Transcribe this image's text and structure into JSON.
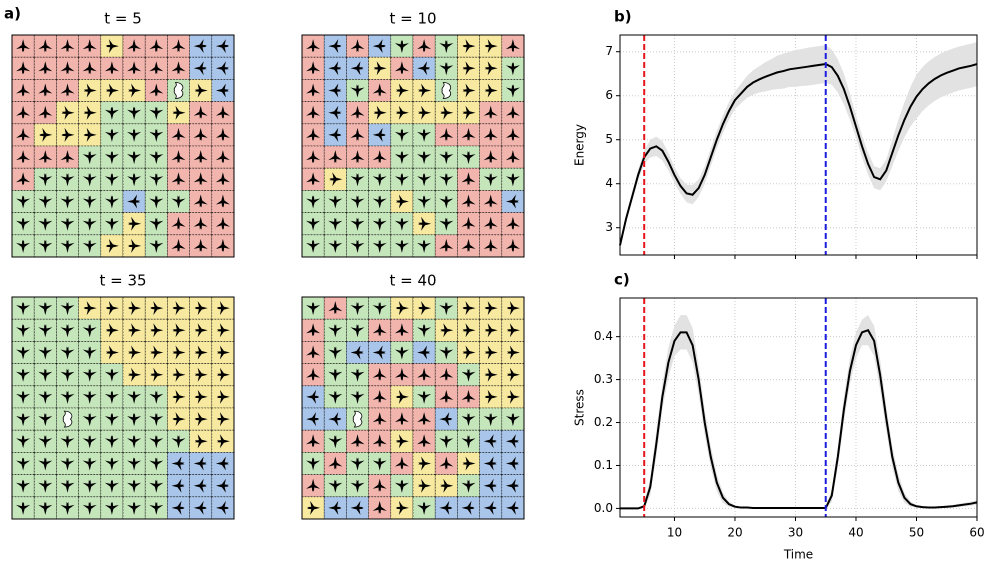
{
  "panel_label": "a)",
  "cell_colors": {
    "U": "#f2b5ad",
    "L": "#a9c6ea",
    "R": "#f7e9a0",
    "D": "#c5e5bb",
    "B": "#c5e5bb"
  },
  "grids": [
    {
      "title": "t = 5",
      "rows": [
        "UUUURUUULL",
        "UUUUUUUULL",
        "UUURRRUBRL",
        "UURRDDDRUU",
        "URRRDDDUUU",
        "UUUDDDDUUU",
        "UDDDDDDUUU",
        "DDDDDLDDUU",
        "DDDDDRDUUU",
        "DDDDRRDUUU"
      ]
    },
    {
      "title": "t = 10",
      "rows": [
        "ULULDUDRRU",
        "ULLRULDRRD",
        "ULDURRBRRD",
        "ULURRRRRUU",
        "ULULDDUUUU",
        "UUUUDDDDUU",
        "URDDDDDUDD",
        "DDDDRDDUUL",
        "DDDDDRDUUU",
        "DDDDDDUUUU"
      ]
    },
    {
      "title": "t = 35",
      "rows": [
        "DDDRRRRRRR",
        "DDDDRRRRRR",
        "DDDDRRRRRR",
        "DDDDDRRRRR",
        "DDDDDDDRRR",
        "DDBDDDDRRR",
        "DDDDDDDDRR",
        "DDDDDDDLLL",
        "DDDDDDDLLL",
        "DDDDDDDLLL"
      ]
    },
    {
      "title": "t = 40",
      "rows": [
        "DUDDRRDRRR",
        "UDDUUDRRRR",
        "UDLLDLDRRR",
        "UDDUUUUDRR",
        "LDDURDUURR",
        "LLBUUULDDD",
        "UDUURUDDLL",
        "DUDDURURLL",
        "UDDUDRRDLL",
        "RLLURDLLLL"
      ]
    }
  ],
  "chart_data": [
    {
      "type": "line",
      "label": "b)",
      "ylabel": "Energy",
      "xlim": [
        1,
        60
      ],
      "ylim": [
        2.38,
        7.38
      ],
      "xticks": [
        10,
        20,
        30,
        40,
        50,
        60
      ],
      "yticks": [
        3,
        4,
        5,
        6,
        7
      ],
      "show_xtick_labels": false,
      "grid": true,
      "band_color": "#e2e2e2",
      "x": [
        1,
        2,
        3,
        4,
        5,
        6,
        7,
        8,
        9,
        10,
        11,
        12,
        13,
        14,
        15,
        16,
        17,
        18,
        19,
        20,
        21,
        22,
        23,
        24,
        25,
        26,
        27,
        28,
        29,
        30,
        31,
        32,
        33,
        34,
        35,
        36,
        37,
        38,
        39,
        40,
        41,
        42,
        43,
        44,
        45,
        46,
        47,
        48,
        49,
        50,
        51,
        52,
        53,
        54,
        55,
        56,
        57,
        58,
        59,
        60
      ],
      "series": [
        {
          "color": "#000000",
          "values": [
            2.6,
            3.2,
            3.7,
            4.2,
            4.6,
            4.8,
            4.85,
            4.75,
            4.5,
            4.2,
            3.95,
            3.78,
            3.75,
            3.9,
            4.2,
            4.6,
            5.0,
            5.35,
            5.65,
            5.9,
            6.05,
            6.2,
            6.3,
            6.37,
            6.43,
            6.48,
            6.53,
            6.56,
            6.6,
            6.62,
            6.64,
            6.66,
            6.68,
            6.7,
            6.72,
            6.65,
            6.45,
            6.15,
            5.75,
            5.3,
            4.85,
            4.45,
            4.15,
            4.1,
            4.3,
            4.7,
            5.1,
            5.45,
            5.75,
            5.98,
            6.15,
            6.28,
            6.38,
            6.46,
            6.52,
            6.57,
            6.62,
            6.65,
            6.68,
            6.72
          ],
          "spread": [
            0.05,
            0.08,
            0.1,
            0.12,
            0.15,
            0.2,
            0.22,
            0.22,
            0.2,
            0.18,
            0.18,
            0.2,
            0.22,
            0.2,
            0.2,
            0.2,
            0.2,
            0.2,
            0.2,
            0.2,
            0.22,
            0.25,
            0.28,
            0.3,
            0.33,
            0.35,
            0.38,
            0.4,
            0.4,
            0.42,
            0.42,
            0.43,
            0.43,
            0.43,
            0.43,
            0.4,
            0.38,
            0.35,
            0.3,
            0.25,
            0.25,
            0.25,
            0.25,
            0.25,
            0.25,
            0.3,
            0.35,
            0.4,
            0.45,
            0.5,
            0.5,
            0.5,
            0.5,
            0.5,
            0.5,
            0.5,
            0.5,
            0.5,
            0.5,
            0.5
          ]
        }
      ],
      "markers": [
        {
          "x": 5,
          "color": "#e8141c"
        },
        {
          "x": 35,
          "color": "#1c1ce0"
        }
      ]
    },
    {
      "type": "line",
      "label": "c)",
      "ylabel": "Stress",
      "xlabel": "Time",
      "xlim": [
        1,
        60
      ],
      "ylim": [
        -0.02,
        0.49
      ],
      "xticks": [
        10,
        20,
        30,
        40,
        50,
        60
      ],
      "yticks": [
        {
          "value": 0,
          "label": "0.0"
        },
        0.1,
        0.2,
        0.3,
        0.4
      ],
      "show_xtick_labels": true,
      "grid": true,
      "band_color": "#e2e2e2",
      "x": [
        1,
        2,
        3,
        4,
        5,
        6,
        7,
        8,
        9,
        10,
        11,
        12,
        13,
        14,
        15,
        16,
        17,
        18,
        19,
        20,
        21,
        22,
        23,
        24,
        25,
        26,
        27,
        28,
        29,
        30,
        31,
        32,
        33,
        34,
        35,
        36,
        37,
        38,
        39,
        40,
        41,
        42,
        43,
        44,
        45,
        46,
        47,
        48,
        49,
        50,
        51,
        52,
        53,
        54,
        55,
        56,
        57,
        58,
        59,
        60
      ],
      "series": [
        {
          "color": "#000000",
          "values": [
            0,
            0,
            0,
            0,
            0.005,
            0.05,
            0.15,
            0.26,
            0.34,
            0.39,
            0.41,
            0.41,
            0.38,
            0.3,
            0.2,
            0.12,
            0.06,
            0.025,
            0.01,
            0.004,
            0.002,
            0.002,
            0.001,
            0.001,
            0.001,
            0.001,
            0.001,
            0.001,
            0.001,
            0.001,
            0.001,
            0.001,
            0.001,
            0.001,
            0.001,
            0.03,
            0.12,
            0.23,
            0.32,
            0.38,
            0.41,
            0.415,
            0.39,
            0.31,
            0.21,
            0.12,
            0.06,
            0.025,
            0.01,
            0.005,
            0.003,
            0.002,
            0.002,
            0.003,
            0.004,
            0.005,
            0.007,
            0.009,
            0.011,
            0.014
          ],
          "spread": [
            0.001,
            0.001,
            0.001,
            0.001,
            0.005,
            0.02,
            0.03,
            0.03,
            0.035,
            0.035,
            0.04,
            0.04,
            0.04,
            0.035,
            0.03,
            0.025,
            0.02,
            0.012,
            0.006,
            0.003,
            0.002,
            0.001,
            0.001,
            0.001,
            0.001,
            0.001,
            0.001,
            0.001,
            0.001,
            0.001,
            0.001,
            0.001,
            0.001,
            0.001,
            0.002,
            0.015,
            0.025,
            0.03,
            0.03,
            0.03,
            0.03,
            0.035,
            0.035,
            0.035,
            0.03,
            0.025,
            0.02,
            0.012,
            0.006,
            0.003,
            0.002,
            0.002,
            0.002,
            0.002,
            0.003,
            0.003,
            0.004,
            0.004,
            0.005,
            0.005
          ]
        }
      ],
      "markers": [
        {
          "x": 5,
          "color": "#e8141c"
        },
        {
          "x": 35,
          "color": "#1c1ce0"
        }
      ]
    }
  ]
}
